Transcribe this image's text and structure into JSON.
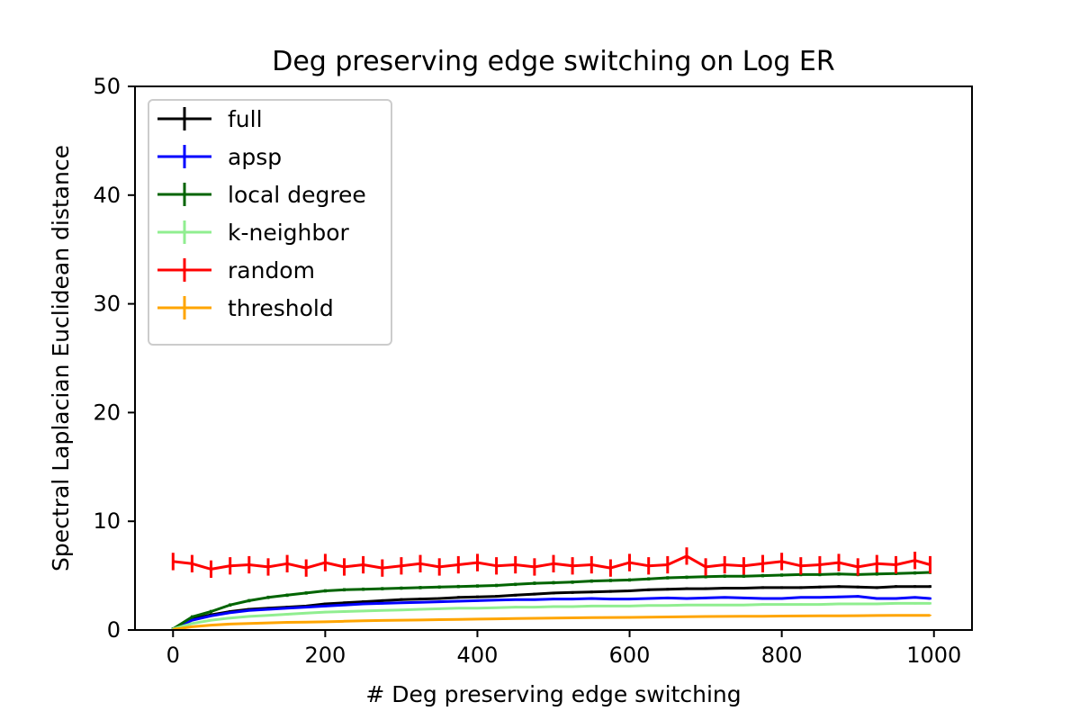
{
  "chart_data": {
    "type": "line",
    "title": "Deg preserving edge switching on Log ER",
    "xlabel": "# Deg preserving edge switching",
    "ylabel": "Spectral Laplacian Euclidean distance",
    "xlim": [
      -50,
      1050
    ],
    "ylim": [
      0,
      50
    ],
    "x_ticks": [
      0,
      200,
      400,
      600,
      800,
      1000
    ],
    "y_ticks": [
      0,
      10,
      20,
      30,
      40,
      50
    ],
    "x_tick_labels": [
      "0",
      "200",
      "400",
      "600",
      "800",
      "1000"
    ],
    "y_tick_labels": [
      "0",
      "10",
      "20",
      "30",
      "40",
      "50"
    ],
    "grid": false,
    "error_bars": true,
    "legend_position": "upper-left",
    "series": [
      {
        "name": "full",
        "color": "#000000",
        "x": [
          0,
          25,
          50,
          75,
          100,
          125,
          150,
          175,
          200,
          225,
          250,
          275,
          300,
          325,
          350,
          375,
          400,
          425,
          450,
          475,
          500,
          525,
          550,
          575,
          600,
          625,
          650,
          675,
          700,
          725,
          750,
          775,
          800,
          825,
          850,
          875,
          900,
          925,
          950,
          975,
          995
        ],
        "y": [
          0.1,
          1.0,
          1.4,
          1.7,
          1.9,
          2.0,
          2.1,
          2.2,
          2.4,
          2.5,
          2.6,
          2.7,
          2.8,
          2.85,
          2.9,
          3.0,
          3.05,
          3.1,
          3.2,
          3.3,
          3.4,
          3.45,
          3.5,
          3.55,
          3.6,
          3.7,
          3.75,
          3.8,
          3.8,
          3.85,
          3.85,
          3.9,
          3.9,
          3.9,
          3.95,
          4.0,
          3.95,
          3.9,
          4.0,
          4.0,
          4.0
        ],
        "error": 0.12
      },
      {
        "name": "apsp",
        "color": "#0000ff",
        "x": [
          0,
          25,
          50,
          75,
          100,
          125,
          150,
          175,
          200,
          225,
          250,
          275,
          300,
          325,
          350,
          375,
          400,
          425,
          450,
          475,
          500,
          525,
          550,
          575,
          600,
          625,
          650,
          675,
          700,
          725,
          750,
          775,
          800,
          825,
          850,
          875,
          900,
          925,
          950,
          975,
          995
        ],
        "y": [
          0.1,
          0.9,
          1.3,
          1.6,
          1.8,
          1.9,
          2.0,
          2.1,
          2.2,
          2.3,
          2.4,
          2.45,
          2.5,
          2.55,
          2.6,
          2.65,
          2.7,
          2.75,
          2.8,
          2.8,
          2.85,
          2.85,
          2.9,
          2.85,
          2.85,
          2.9,
          2.95,
          2.9,
          2.95,
          3.0,
          2.95,
          2.9,
          2.9,
          3.0,
          3.0,
          3.05,
          3.1,
          2.9,
          2.9,
          3.0,
          2.9
        ],
        "error": 0.1
      },
      {
        "name": "local degree",
        "color": "#006400",
        "x": [
          0,
          25,
          50,
          75,
          100,
          125,
          150,
          175,
          200,
          225,
          250,
          275,
          300,
          325,
          350,
          375,
          400,
          425,
          450,
          475,
          500,
          525,
          550,
          575,
          600,
          625,
          650,
          675,
          700,
          725,
          750,
          775,
          800,
          825,
          850,
          875,
          900,
          925,
          950,
          975,
          995
        ],
        "y": [
          0.1,
          1.2,
          1.7,
          2.3,
          2.7,
          3.0,
          3.2,
          3.4,
          3.6,
          3.7,
          3.75,
          3.8,
          3.85,
          3.9,
          3.95,
          4.0,
          4.05,
          4.1,
          4.2,
          4.3,
          4.35,
          4.4,
          4.5,
          4.55,
          4.6,
          4.7,
          4.8,
          4.85,
          4.9,
          4.95,
          4.95,
          5.0,
          5.05,
          5.1,
          5.1,
          5.15,
          5.1,
          5.15,
          5.2,
          5.25,
          5.3
        ],
        "error": 0.15
      },
      {
        "name": "k-neighbor",
        "color": "#90ee90",
        "x": [
          0,
          25,
          50,
          75,
          100,
          125,
          150,
          175,
          200,
          225,
          250,
          275,
          300,
          325,
          350,
          375,
          400,
          425,
          450,
          475,
          500,
          525,
          550,
          575,
          600,
          625,
          650,
          675,
          700,
          725,
          750,
          775,
          800,
          825,
          850,
          875,
          900,
          925,
          950,
          975,
          995
        ],
        "y": [
          0.1,
          0.6,
          0.9,
          1.1,
          1.25,
          1.35,
          1.45,
          1.55,
          1.65,
          1.7,
          1.75,
          1.8,
          1.85,
          1.9,
          1.95,
          2.0,
          2.0,
          2.05,
          2.1,
          2.1,
          2.15,
          2.15,
          2.2,
          2.2,
          2.2,
          2.25,
          2.25,
          2.3,
          2.3,
          2.3,
          2.3,
          2.35,
          2.35,
          2.35,
          2.35,
          2.4,
          2.4,
          2.4,
          2.45,
          2.45,
          2.45
        ],
        "error": 0.1
      },
      {
        "name": "random",
        "color": "#ff0000",
        "x": [
          0,
          25,
          50,
          75,
          100,
          125,
          150,
          175,
          200,
          225,
          250,
          275,
          300,
          325,
          350,
          375,
          400,
          425,
          450,
          475,
          500,
          525,
          550,
          575,
          600,
          625,
          650,
          675,
          700,
          725,
          750,
          775,
          800,
          825,
          850,
          875,
          900,
          925,
          950,
          975,
          995
        ],
        "y": [
          6.3,
          6.1,
          5.6,
          5.9,
          6.0,
          5.8,
          6.1,
          5.7,
          6.2,
          5.8,
          6.0,
          5.7,
          5.9,
          6.1,
          5.8,
          6.0,
          6.2,
          5.9,
          6.0,
          5.8,
          6.1,
          5.9,
          6.0,
          5.7,
          6.2,
          5.9,
          6.0,
          6.8,
          5.8,
          6.0,
          5.9,
          6.1,
          6.3,
          5.9,
          6.0,
          6.2,
          5.8,
          6.1,
          6.0,
          6.4,
          6.0
        ],
        "error": 0.8
      },
      {
        "name": "threshold",
        "color": "#ffa500",
        "x": [
          0,
          25,
          50,
          75,
          100,
          125,
          150,
          175,
          200,
          225,
          250,
          275,
          300,
          325,
          350,
          375,
          400,
          425,
          450,
          475,
          500,
          525,
          550,
          575,
          600,
          625,
          650,
          675,
          700,
          725,
          750,
          775,
          800,
          825,
          850,
          875,
          900,
          925,
          950,
          975,
          995
        ],
        "y": [
          0.05,
          0.3,
          0.45,
          0.55,
          0.6,
          0.65,
          0.7,
          0.72,
          0.75,
          0.8,
          0.85,
          0.88,
          0.9,
          0.92,
          0.95,
          0.98,
          1.0,
          1.03,
          1.06,
          1.08,
          1.1,
          1.12,
          1.14,
          1.15,
          1.16,
          1.18,
          1.2,
          1.22,
          1.24,
          1.25,
          1.26,
          1.27,
          1.28,
          1.29,
          1.3,
          1.31,
          1.32,
          1.33,
          1.34,
          1.35,
          1.35
        ],
        "error": 0.05
      }
    ]
  }
}
